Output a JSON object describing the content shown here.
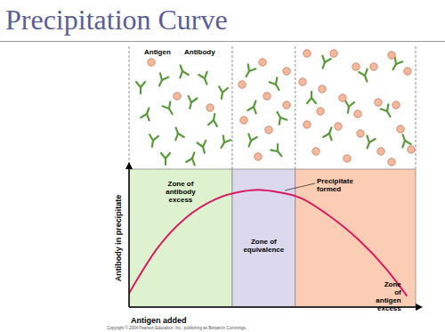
{
  "chart_data": {
    "type": "line",
    "title": "Precipitation Curve",
    "x_label": "Antigen added",
    "y_label": "Antibody in precipitate",
    "x": [
      0,
      1,
      2,
      3,
      4,
      4.5,
      5,
      6,
      7,
      8,
      9,
      9.7
    ],
    "values": [
      1.0,
      4.3,
      6.5,
      7.8,
      8.4,
      8.5,
      8.4,
      7.9,
      6.6,
      4.9,
      2.7,
      0.8
    ],
    "color": "#d81b60",
    "marker": "none",
    "line_style": "solid",
    "xlim": [
      0,
      10
    ],
    "ylim": [
      0,
      10
    ],
    "xticks": [],
    "yticks": [],
    "tick_labels": false,
    "grid": false,
    "annotation": "Precipitate formed",
    "zones": [
      {
        "label": "Zone of antibody excess",
        "start": 0,
        "end": 3.6,
        "color": "#dff2cf"
      },
      {
        "label": "Zone of equivalence",
        "start": 3.6,
        "end": 5.8,
        "color": "#dcd9ef"
      },
      {
        "label": "Zone of antigen excess",
        "start": 5.8,
        "end": 10,
        "color": "#fbcdb4"
      }
    ]
  },
  "schematic": {
    "antigen_label": "Antigen",
    "antibody_label": "Antibody"
  },
  "copyright": "Copyright © 2004 Pearson Education, Inc., publishing as Benjamin Cummings."
}
